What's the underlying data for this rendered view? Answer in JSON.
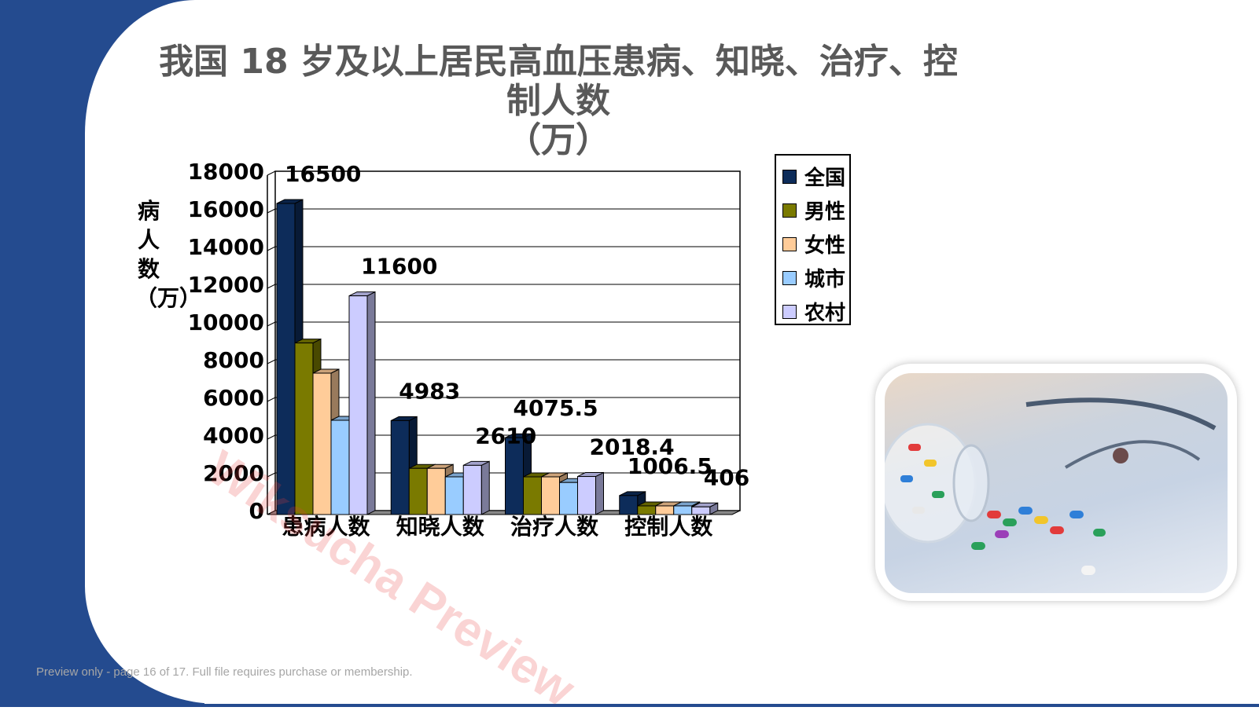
{
  "slide": {
    "title_line1": "我国 18 岁及以上居民高血压患病、知晓、治疗、控制人数",
    "title_line2": "（万）",
    "footer": "Preview only - page 16 of 17. Full file requires purchase or membership.",
    "watermark": "Wiksucha Preview"
  },
  "photo": {
    "icon": "medicine-pills-photo"
  },
  "colors": {
    "background_band": "#244b8f"
  },
  "chart_data": {
    "type": "bar",
    "style": "3d-clustered",
    "title": "",
    "ylabel": "病人数（万）",
    "xlabel": "",
    "ylim": [
      0,
      18000
    ],
    "yticks": [
      "0",
      "2000",
      "4000",
      "6000",
      "8000",
      "10000",
      "12000",
      "14000",
      "16000",
      "18000"
    ],
    "grid": true,
    "legend_position": "right",
    "categories": [
      "患病人数",
      "知晓人数",
      "治疗人数",
      "控制人数"
    ],
    "series": [
      {
        "name": "全国",
        "color": "#0d2c5a",
        "values": [
          16500,
          4983,
          4075.5,
          1006.5
        ]
      },
      {
        "name": "男性",
        "color": "#7a7a00",
        "values": [
          9100,
          2450,
          2000,
          460
        ]
      },
      {
        "name": "女性",
        "color": "#ffcc99",
        "values": [
          7500,
          2450,
          2000,
          460
        ]
      },
      {
        "name": "城市",
        "color": "#99ccff",
        "values": [
          5000,
          2000,
          1700,
          460
        ]
      },
      {
        "name": "农村",
        "color": "#ccccff",
        "values": [
          11600,
          2610,
          2018.4,
          406
        ]
      }
    ],
    "data_labels": [
      "16500",
      "11600",
      "4983",
      "2610",
      "4075.5",
      "2018.4",
      "1006.5",
      "406"
    ]
  }
}
